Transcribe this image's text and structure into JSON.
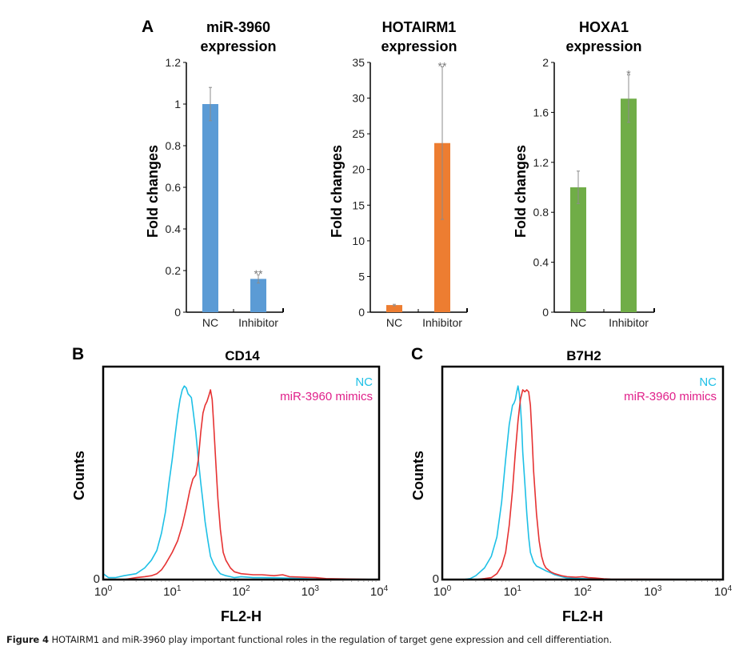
{
  "figure": {
    "panel_labels": [
      "A",
      "B",
      "C"
    ],
    "caption_label": "Figure 4",
    "caption_text": " HOTAIRM1 and miR-3960 play important functional roles in the regulation of target gene expression and cell differentiation."
  },
  "colors": {
    "blue_bar": "#5b9bd5",
    "orange_bar": "#ed7d31",
    "green_bar": "#70ad47",
    "nc_line": "#1ec0e6",
    "mimics_line": "#e63232",
    "nc_legend": "#1ec0e6",
    "mimics_legend": "#e0208a"
  },
  "chart_data": [
    {
      "type": "bar",
      "panel": "A",
      "title": [
        "miR-3960",
        "expression"
      ],
      "ylabel": "Fold changes",
      "xlabel": "",
      "categories": [
        "NC",
        "Inhibitor"
      ],
      "values": [
        1.0,
        0.16
      ],
      "errors": [
        0.08,
        0.02
      ],
      "significance": [
        "",
        "**"
      ],
      "ylim": [
        0,
        1.2
      ],
      "yticks": [
        0,
        0.2,
        0.4,
        0.6,
        0.8,
        1,
        1.2
      ],
      "ytick_labels": [
        "0",
        "0.2",
        "0.4",
        "0.6",
        "0.8",
        "1",
        "1.2"
      ],
      "color": "#5b9bd5"
    },
    {
      "type": "bar",
      "panel": "A",
      "title": [
        "HOTAIRM1",
        "expression"
      ],
      "ylabel": "Fold changes",
      "xlabel": "",
      "categories": [
        "NC",
        "Inhibitor"
      ],
      "values": [
        1.0,
        23.7
      ],
      "errors": [
        0.1,
        10.7
      ],
      "significance": [
        "",
        "**"
      ],
      "ylim": [
        0,
        35
      ],
      "yticks": [
        0,
        5,
        10,
        15,
        20,
        25,
        30,
        35
      ],
      "ytick_labels": [
        "0",
        "5",
        "10",
        "15",
        "20",
        "25",
        "30",
        "35"
      ],
      "color": "#ed7d31"
    },
    {
      "type": "bar",
      "panel": "A",
      "title": [
        "HOXA1",
        "expression"
      ],
      "ylabel": "Fold changes",
      "xlabel": "",
      "categories": [
        "NC",
        "Inhibitor"
      ],
      "values": [
        1.0,
        1.71
      ],
      "errors": [
        0.13,
        0.19
      ],
      "significance": [
        "",
        "*"
      ],
      "ylim": [
        0,
        2
      ],
      "yticks": [
        0,
        0.4,
        0.8,
        1.2,
        1.6,
        2
      ],
      "ytick_labels": [
        "0",
        "0.4",
        "0.8",
        "1.2",
        "1.6",
        "2"
      ],
      "color": "#70ad47"
    },
    {
      "type": "line",
      "panel": "B",
      "title": "CD14",
      "xlabel": "FL2-H",
      "ylabel": "Counts",
      "xscale": "log",
      "xlim": [
        1,
        10000
      ],
      "xtick_labels": [
        "10^0",
        "10^1",
        "10^2",
        "10^3",
        "10^4"
      ],
      "ytick_labels": [
        "0"
      ],
      "ylim": [
        0,
        1.1
      ],
      "legend": [
        "NC",
        "miR-3960 mimics"
      ],
      "legend_position": "top-right",
      "series": [
        {
          "name": "NC",
          "color": "#1ec0e6",
          "x": [
            1,
            1.2,
            1.5,
            2,
            3,
            4,
            5,
            6,
            7,
            8,
            9,
            10,
            11,
            12,
            13,
            14,
            15,
            16,
            17,
            18,
            19,
            20,
            22,
            24,
            26,
            28,
            30,
            33,
            36,
            40,
            45,
            50,
            60,
            70,
            80,
            100,
            150,
            200,
            400,
            800,
            1500,
            10000
          ],
          "y": [
            0.03,
            0.01,
            0.01,
            0.02,
            0.03,
            0.06,
            0.1,
            0.15,
            0.24,
            0.35,
            0.5,
            0.62,
            0.74,
            0.85,
            0.93,
            0.98,
            1.0,
            0.99,
            0.96,
            0.95,
            0.94,
            0.88,
            0.76,
            0.62,
            0.5,
            0.4,
            0.3,
            0.2,
            0.12,
            0.08,
            0.05,
            0.03,
            0.02,
            0.015,
            0.01,
            0.015,
            0.01,
            0.01,
            0.008,
            0.005,
            0.002,
            0.0
          ]
        },
        {
          "name": "miR-3960 mimics",
          "color": "#e63232",
          "x": [
            1,
            2,
            3,
            4,
            5,
            6,
            7,
            8,
            10,
            12,
            14,
            16,
            18,
            20,
            22,
            24,
            26,
            28,
            30,
            32,
            34,
            36,
            38,
            40,
            43,
            46,
            50,
            55,
            60,
            70,
            80,
            100,
            150,
            200,
            300,
            400,
            500,
            800,
            1200,
            1700,
            10000
          ],
          "y": [
            0.0,
            0.0,
            0.01,
            0.015,
            0.02,
            0.03,
            0.05,
            0.08,
            0.14,
            0.2,
            0.28,
            0.37,
            0.46,
            0.52,
            0.54,
            0.62,
            0.76,
            0.86,
            0.9,
            0.92,
            0.95,
            0.98,
            0.93,
            0.8,
            0.6,
            0.42,
            0.26,
            0.14,
            0.1,
            0.06,
            0.04,
            0.03,
            0.025,
            0.025,
            0.02,
            0.025,
            0.015,
            0.012,
            0.01,
            0.005,
            0.0
          ]
        }
      ]
    },
    {
      "type": "line",
      "panel": "C",
      "title": "B7H2",
      "xlabel": "FL2-H",
      "ylabel": "Counts",
      "xscale": "log",
      "xlim": [
        1,
        10000
      ],
      "xtick_labels": [
        "10^0",
        "10^1",
        "10^2",
        "10^3",
        "10^4"
      ],
      "ytick_labels": [
        "0"
      ],
      "ylim": [
        0,
        1.1
      ],
      "legend": [
        "NC",
        "miR-3960 mimics"
      ],
      "legend_position": "top-right",
      "series": [
        {
          "name": "NC",
          "color": "#1ec0e6",
          "x": [
            1,
            2,
            2.5,
            3,
            4,
            5,
            6,
            7,
            8,
            9,
            10,
            10.5,
            11,
            11.5,
            12,
            12.5,
            13,
            13.5,
            14,
            15,
            16,
            17,
            18,
            20,
            22,
            25,
            30,
            35,
            40,
            50,
            60,
            80,
            100,
            150,
            200,
            300,
            10000
          ],
          "y": [
            0.0,
            0.0,
            0.005,
            0.02,
            0.06,
            0.12,
            0.22,
            0.4,
            0.62,
            0.8,
            0.9,
            0.91,
            0.93,
            0.97,
            1.0,
            0.96,
            0.9,
            0.8,
            0.66,
            0.5,
            0.34,
            0.22,
            0.14,
            0.09,
            0.07,
            0.06,
            0.045,
            0.035,
            0.025,
            0.015,
            0.008,
            0.006,
            0.005,
            0.003,
            0.002,
            0.0,
            0.0
          ]
        },
        {
          "name": "miR-3960 mimics",
          "color": "#e63232",
          "x": [
            1,
            3,
            4,
            5,
            6,
            7,
            8,
            9,
            10,
            11,
            12,
            13,
            14,
            15,
            16,
            17,
            18,
            19,
            20,
            22,
            24,
            26,
            28,
            30,
            35,
            40,
            50,
            60,
            80,
            100,
            120,
            150,
            200,
            250,
            10000
          ],
          "y": [
            0.0,
            0.0,
            0.005,
            0.01,
            0.03,
            0.07,
            0.14,
            0.28,
            0.46,
            0.66,
            0.82,
            0.93,
            0.98,
            0.97,
            0.98,
            0.97,
            0.9,
            0.74,
            0.56,
            0.34,
            0.2,
            0.12,
            0.08,
            0.06,
            0.04,
            0.03,
            0.02,
            0.015,
            0.012,
            0.015,
            0.01,
            0.008,
            0.004,
            0.002,
            0.0
          ]
        }
      ]
    }
  ]
}
